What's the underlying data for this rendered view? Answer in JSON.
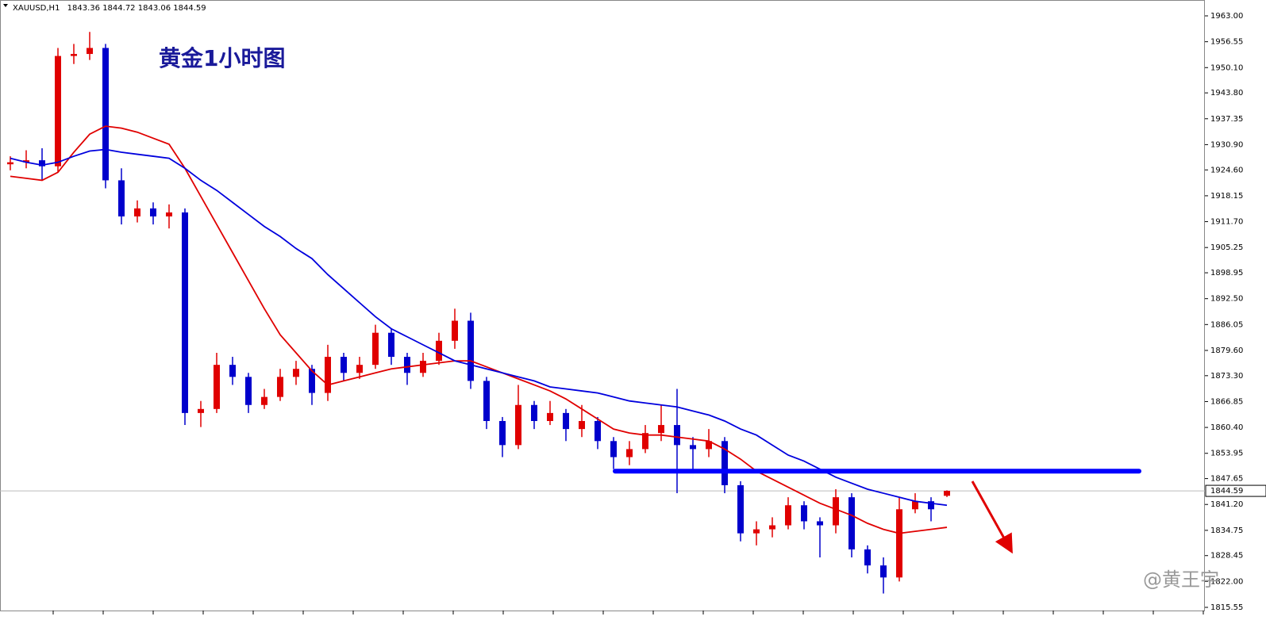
{
  "chart_data": {
    "type": "candlestick",
    "symbol": "XAUUSD,H1",
    "header_ohlc": [
      1843.36,
      1844.72,
      1843.06,
      1844.59
    ],
    "title": "黄金1小时图",
    "watermark": "@黄王宇",
    "up_color": "#e00000",
    "down_color": "#0000cc",
    "ylim": [
      1815.55,
      1963
    ],
    "yticks": [
      {
        "value": 1963,
        "label": "1963.00"
      },
      {
        "value": 1956.55,
        "label": "1956.55"
      },
      {
        "value": 1950.1,
        "label": "1950.10"
      },
      {
        "value": 1943.8,
        "label": "1943.80"
      },
      {
        "value": 1937.35,
        "label": "1937.35"
      },
      {
        "value": 1930.9,
        "label": "1930.90"
      },
      {
        "value": 1924.6,
        "label": "1924.60"
      },
      {
        "value": 1918.15,
        "label": "1918.15"
      },
      {
        "value": 1911.7,
        "label": "1911.70"
      },
      {
        "value": 1905.25,
        "label": "1905.25"
      },
      {
        "value": 1898.95,
        "label": "1898.95"
      },
      {
        "value": 1892.5,
        "label": "1892.50"
      },
      {
        "value": 1886.05,
        "label": "1886.05"
      },
      {
        "value": 1879.6,
        "label": "1879.60"
      },
      {
        "value": 1873.3,
        "label": "1873.30"
      },
      {
        "value": 1866.85,
        "label": "1866.85"
      },
      {
        "value": 1860.4,
        "label": "1860.40"
      },
      {
        "value": 1853.95,
        "label": "1853.95"
      },
      {
        "value": 1847.65,
        "label": "1847.65"
      },
      {
        "value": 1841.2,
        "label": "1841.20"
      },
      {
        "value": 1834.75,
        "label": "1834.75"
      },
      {
        "value": 1828.45,
        "label": "1828.45"
      },
      {
        "value": 1822,
        "label": "1822.00"
      },
      {
        "value": 1815.55,
        "label": "1815.55"
      }
    ],
    "current_price": 1844.59,
    "level": {
      "value": 1849.5,
      "color": "#0000ff"
    },
    "ohlc": [
      [
        1926,
        1928,
        1924.5,
        1926.5
      ],
      [
        1926.5,
        1929.5,
        1925,
        1927
      ],
      [
        1927,
        1930,
        1922,
        1925.5
      ],
      [
        1925.5,
        1955,
        1924,
        1953
      ],
      [
        1953,
        1956,
        1951,
        1953.5
      ],
      [
        1953.5,
        1959,
        1952,
        1955
      ],
      [
        1955,
        1956,
        1920,
        1922
      ],
      [
        1922,
        1925,
        1911,
        1913
      ],
      [
        1913,
        1917,
        1911.5,
        1915
      ],
      [
        1915,
        1916.5,
        1911,
        1913
      ],
      [
        1913,
        1916,
        1910,
        1914
      ],
      [
        1914,
        1915,
        1861,
        1864
      ],
      [
        1864,
        1867,
        1860.5,
        1865
      ],
      [
        1865,
        1879,
        1864,
        1876
      ],
      [
        1876,
        1878,
        1871,
        1873
      ],
      [
        1873,
        1874,
        1864,
        1866
      ],
      [
        1866,
        1870,
        1865,
        1868
      ],
      [
        1868,
        1875,
        1867,
        1873
      ],
      [
        1873,
        1877,
        1871,
        1875
      ],
      [
        1875,
        1876,
        1866,
        1869
      ],
      [
        1869,
        1881,
        1867,
        1878
      ],
      [
        1878,
        1879,
        1872,
        1874
      ],
      [
        1874,
        1878,
        1872.5,
        1876
      ],
      [
        1876,
        1886,
        1875,
        1884
      ],
      [
        1884,
        1885,
        1876,
        1878
      ],
      [
        1878,
        1879,
        1871,
        1874
      ],
      [
        1874,
        1879,
        1873,
        1877
      ],
      [
        1877,
        1884,
        1876,
        1882
      ],
      [
        1882,
        1890,
        1880,
        1887
      ],
      [
        1887,
        1889,
        1870,
        1872
      ],
      [
        1872,
        1873,
        1860,
        1862
      ],
      [
        1862,
        1863,
        1853,
        1856
      ],
      [
        1856,
        1871,
        1855,
        1866
      ],
      [
        1866,
        1867,
        1860,
        1862
      ],
      [
        1862,
        1867,
        1861,
        1864
      ],
      [
        1864,
        1865,
        1857,
        1860
      ],
      [
        1860,
        1866,
        1858,
        1862
      ],
      [
        1862,
        1863,
        1855,
        1857
      ],
      [
        1857,
        1858,
        1850,
        1853
      ],
      [
        1853,
        1857,
        1851,
        1855
      ],
      [
        1855,
        1861,
        1854,
        1859
      ],
      [
        1859,
        1866,
        1857,
        1861
      ],
      [
        1861,
        1870,
        1844,
        1856
      ],
      [
        1856,
        1858,
        1850,
        1855
      ],
      [
        1855,
        1860,
        1853,
        1857
      ],
      [
        1857,
        1858,
        1844,
        1846
      ],
      [
        1846,
        1847,
        1832,
        1834
      ],
      [
        1834,
        1837,
        1831,
        1835
      ],
      [
        1835,
        1838,
        1833,
        1836
      ],
      [
        1836,
        1843,
        1835,
        1841
      ],
      [
        1841,
        1842,
        1835,
        1837
      ],
      [
        1837,
        1838,
        1828,
        1836
      ],
      [
        1836,
        1845,
        1834,
        1843
      ],
      [
        1843,
        1844,
        1828,
        1830
      ],
      [
        1830,
        1831,
        1824,
        1826
      ],
      [
        1826,
        1828,
        1819,
        1823
      ],
      [
        1823,
        1843,
        1822,
        1840
      ],
      [
        1840,
        1844,
        1839,
        1842
      ],
      [
        1842,
        1843,
        1837,
        1840
      ],
      [
        1843.36,
        1844.72,
        1843.06,
        1844.59
      ]
    ],
    "lines": [
      {
        "color": "#e00000",
        "values": [
          1923,
          1922.5,
          1922,
          1924,
          1929,
          1933.5,
          1935.5,
          1935,
          1934,
          1932.5,
          1931,
          1925,
          1918,
          1911,
          1904,
          1897,
          1890,
          1883.5,
          1879,
          1874.5,
          1871,
          1872,
          1873,
          1874,
          1875,
          1875.5,
          1876,
          1876.5,
          1877,
          1877,
          1875.5,
          1874,
          1872.5,
          1871,
          1869.5,
          1867.5,
          1865,
          1862.5,
          1860,
          1859,
          1858.5,
          1858.5,
          1858,
          1857.5,
          1857,
          1855,
          1852.5,
          1849.5,
          1847.5,
          1845.5,
          1843.5,
          1841.5,
          1840,
          1838.5,
          1836.5,
          1835,
          1834,
          1834.5,
          1835,
          1835.5
        ]
      },
      {
        "color": "#0000dd",
        "values": [
          1927.5,
          1926.5,
          1925.8,
          1926.5,
          1928,
          1929.3,
          1929.7,
          1929,
          1928.5,
          1928,
          1927.5,
          1925,
          1922,
          1919.5,
          1916.5,
          1913.5,
          1910.5,
          1908,
          1905,
          1902.5,
          1898.5,
          1895,
          1891.5,
          1888,
          1885,
          1883,
          1881,
          1879,
          1877,
          1876,
          1875,
          1874,
          1873,
          1872,
          1870.5,
          1870,
          1869.5,
          1869,
          1868,
          1867,
          1866.5,
          1866,
          1865.5,
          1864.5,
          1863.5,
          1862,
          1860,
          1858.5,
          1856,
          1853.5,
          1852,
          1850,
          1848,
          1846.5,
          1845,
          1844,
          1843,
          1842,
          1841.5,
          1841
        ]
      }
    ]
  }
}
